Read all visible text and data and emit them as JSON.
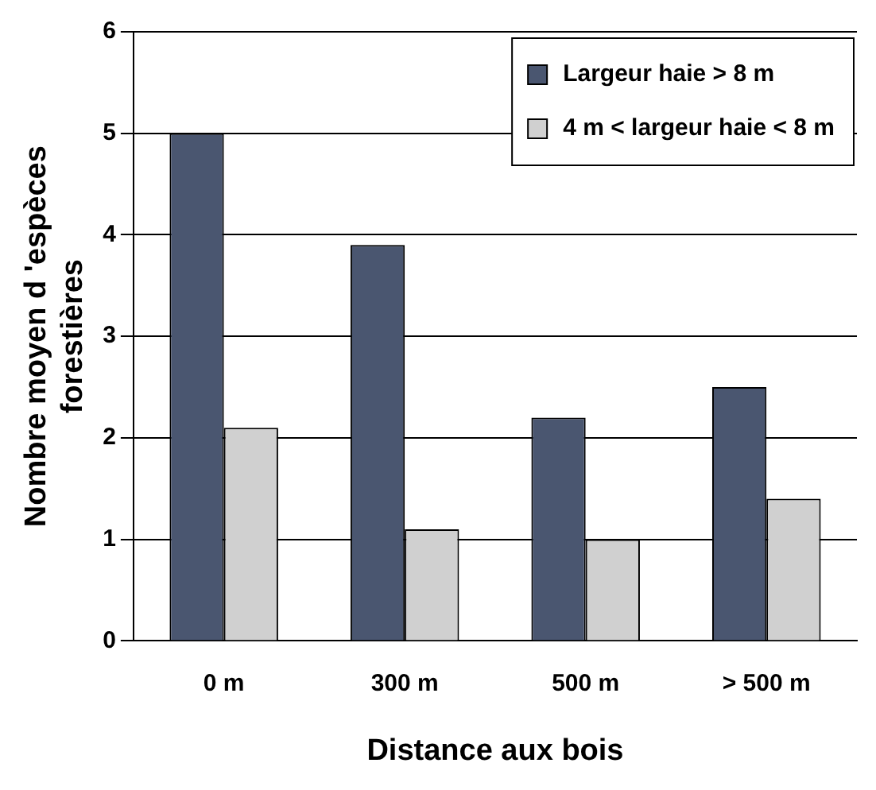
{
  "chart_data": {
    "type": "bar",
    "xlabel": "Distance aux bois",
    "ylabel": "Nombre moyen d 'espèces\nforestières",
    "categories": [
      "0 m",
      "300 m",
      "500 m",
      "> 500 m"
    ],
    "series": [
      {
        "name": "Largeur haie > 8 m",
        "color": "#4a5670",
        "values": [
          5.0,
          3.9,
          2.2,
          2.5
        ]
      },
      {
        "name": "4 m < largeur haie < 8 m",
        "color": "#d0d0d0",
        "values": [
          2.1,
          1.1,
          1.0,
          1.4
        ]
      }
    ],
    "ylim": [
      0,
      6
    ],
    "yticks": [
      0,
      1,
      2,
      3,
      4,
      5,
      6
    ],
    "grid": "y",
    "legend": "top right"
  }
}
